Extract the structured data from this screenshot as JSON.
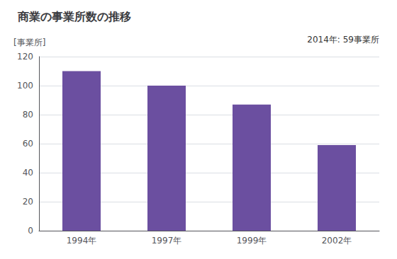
{
  "chart_data": {
    "type": "bar",
    "title": "商業の事業所数の推移",
    "ylabel": "[事業所]",
    "annotation": "2014年: 59事業所",
    "categories": [
      "1994年",
      "1997年",
      "1999年",
      "2002年"
    ],
    "values": [
      110,
      100,
      87,
      59
    ],
    "color": "#6b4fa0",
    "ylim": [
      0,
      120
    ],
    "yticks": [
      0,
      20,
      40,
      60,
      80,
      100,
      120
    ],
    "grid": true
  }
}
